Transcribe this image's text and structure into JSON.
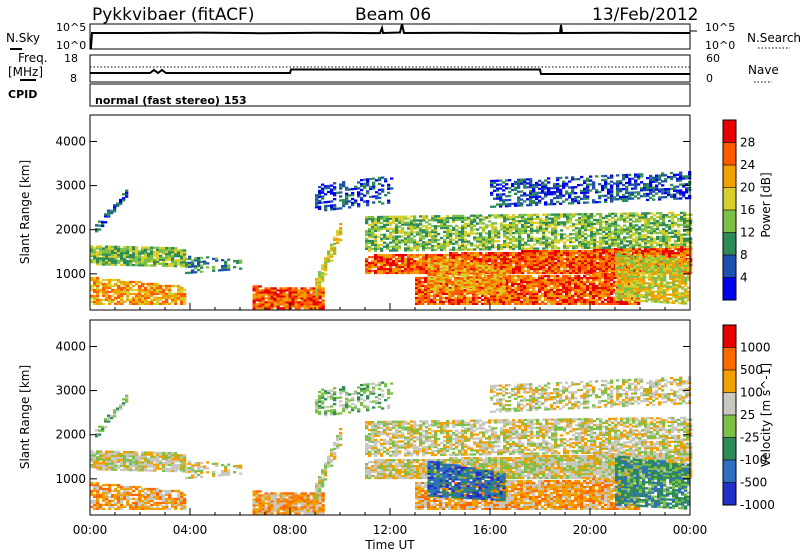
{
  "header": {
    "site": "Pykkvibaer (fitACF)",
    "beam": "Beam 06",
    "date": "13/Feb/2012"
  },
  "top_panels": {
    "nsky_label": "N.Sky",
    "nsearch_label": "N.Search",
    "noise_ticks_left": [
      "10^5",
      "10^0"
    ],
    "noise_ticks_right": [
      "10^5",
      "10^0"
    ],
    "freq_label_1": "Freq.",
    "freq_label_2": "[MHz]",
    "freq_ticks": [
      "18",
      "8"
    ],
    "nave_label": "Nave",
    "nave_ticks": [
      "60",
      "0"
    ],
    "cpid_label": "CPID",
    "cpid_value": "normal (fast stereo) 153"
  },
  "chart_data": [
    {
      "type": "heatmap",
      "quantity": "Power",
      "colorbar_label": "Power [dB]",
      "colorbar_ticks": [
        "28",
        "24",
        "20",
        "16",
        "12",
        "8",
        "4"
      ],
      "colors": [
        "#0000ee",
        "#1f4fb0",
        "#2e8b57",
        "#7cc04a",
        "#d8cf2a",
        "#f2a000",
        "#ff5a00",
        "#e80000"
      ],
      "ylabel": "Slant Range [km]",
      "yticks": [
        "4000",
        "3000",
        "2000",
        "1000"
      ],
      "ylim": [
        180,
        4600
      ],
      "xlim_hours": [
        0,
        24
      ]
    },
    {
      "type": "heatmap",
      "quantity": "Velocity",
      "colorbar_label": "Velocity [m s^-1]",
      "colorbar_ticks": [
        "1000",
        "500",
        "100",
        "25",
        "-25",
        "-100",
        "-500",
        "-1000"
      ],
      "colors": [
        "#2030c8",
        "#2f6fbf",
        "#2e8b57",
        "#7cc04a",
        "#c8c8c0",
        "#f2a000",
        "#ff6a00",
        "#e80000"
      ],
      "ylabel": "Slant Range [km]",
      "yticks": [
        "4000",
        "3000",
        "2000",
        "1000"
      ],
      "ylim": [
        180,
        4600
      ],
      "xlim_hours": [
        0,
        24
      ]
    }
  ],
  "xaxis": {
    "ticks": [
      "00:00",
      "04:00",
      "08:00",
      "12:00",
      "16:00",
      "20:00",
      "00:00"
    ],
    "label": "Time UT"
  }
}
